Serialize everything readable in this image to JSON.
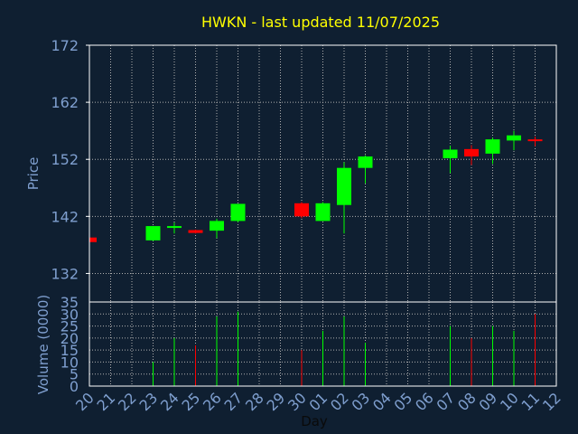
{
  "chart_data": {
    "type": "candlestick",
    "title": "HWKN - last updated 11/07/2025",
    "xlabel": "Day",
    "ylabel": "Price",
    "volume_label": "Volume (0000)",
    "x_ticks": [
      "20",
      "21",
      "22",
      "23",
      "24",
      "25",
      "26",
      "27",
      "28",
      "29",
      "30",
      "01",
      "02",
      "03",
      "04",
      "05",
      "06",
      "07",
      "08",
      "09",
      "10",
      "11",
      "12"
    ],
    "y_ticks": [
      132,
      142,
      152,
      162,
      172
    ],
    "ylim": [
      127,
      172
    ],
    "volume_ticks": [
      0,
      5,
      10,
      15,
      20,
      25,
      30,
      35
    ],
    "volume_ylim": [
      0,
      35
    ],
    "grid": true,
    "colors": {
      "background": "#0f1f31",
      "up": "#00ff00",
      "down": "#ff0000",
      "axis_text": "#7f9fcf",
      "title": "#ffff00",
      "grid": "#b0b0b0"
    },
    "candles": [
      {
        "day": "20",
        "open": 138.3,
        "high": 138.5,
        "low": 137.4,
        "close": 137.5,
        "volume": 0
      },
      {
        "day": "23",
        "open": 137.8,
        "high": 140.3,
        "low": 137.7,
        "close": 140.3,
        "volume": 10
      },
      {
        "day": "24",
        "open": 140.1,
        "high": 140.9,
        "low": 139.0,
        "close": 140.3,
        "volume": 20
      },
      {
        "day": "25",
        "open": 139.6,
        "high": 139.7,
        "low": 139.0,
        "close": 139.1,
        "volume": 17
      },
      {
        "day": "26",
        "open": 139.5,
        "high": 141.6,
        "low": 138.2,
        "close": 141.2,
        "volume": 29
      },
      {
        "day": "27",
        "open": 141.2,
        "high": 144.2,
        "low": 141.0,
        "close": 144.2,
        "volume": 31
      },
      {
        "day": "30",
        "open": 144.3,
        "high": 144.5,
        "low": 141.7,
        "close": 142.0,
        "volume": 15
      },
      {
        "day": "01",
        "open": 141.2,
        "high": 144.5,
        "low": 141.2,
        "close": 144.3,
        "volume": 23
      },
      {
        "day": "02",
        "open": 144.0,
        "high": 151.5,
        "low": 139.0,
        "close": 150.5,
        "volume": 29
      },
      {
        "day": "03",
        "open": 150.5,
        "high": 152.7,
        "low": 147.8,
        "close": 152.5,
        "volume": 18
      },
      {
        "day": "07",
        "open": 152.2,
        "high": 154.4,
        "low": 149.6,
        "close": 153.7,
        "volume": 25
      },
      {
        "day": "08",
        "open": 153.8,
        "high": 154.5,
        "low": 151.0,
        "close": 152.5,
        "volume": 20
      },
      {
        "day": "09",
        "open": 153.0,
        "high": 155.8,
        "low": 151.2,
        "close": 155.5,
        "volume": 25
      },
      {
        "day": "10",
        "open": 155.3,
        "high": 157.0,
        "low": 153.6,
        "close": 156.2,
        "volume": 23
      },
      {
        "day": "11",
        "open": 155.5,
        "high": 156.0,
        "low": 154.3,
        "close": 155.3,
        "volume": 30
      }
    ]
  }
}
